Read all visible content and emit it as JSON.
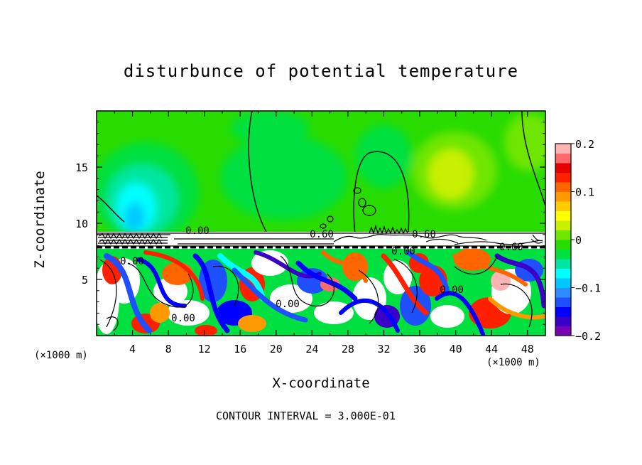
{
  "chart_data": {
    "type": "heatmap",
    "title": "disturbunce of potential temperature",
    "xlabel": "X-coordinate",
    "ylabel": "Z-coordinate",
    "x_unit_left": "(×1000 m)",
    "x_unit_right": "(×1000 m)",
    "x_ticks": [
      "4",
      "8",
      "12",
      "16",
      "20",
      "24",
      "28",
      "32",
      "36",
      "40",
      "44",
      "48"
    ],
    "y_ticks": [
      "5",
      "10",
      "15"
    ],
    "xlim": [
      0,
      50
    ],
    "ylim": [
      0,
      20
    ],
    "colorbar": {
      "ticks": [
        "0.2",
        "0.1",
        "0",
        "−0.1",
        "−0.2"
      ],
      "range": [
        -0.2,
        0.2
      ],
      "colors": [
        "#7a00b5",
        "#3a00c8",
        "#0000ff",
        "#1e50ff",
        "#2e8cff",
        "#00c8ff",
        "#00ffff",
        "#00e6a0",
        "#00e040",
        "#28dc00",
        "#6ee600",
        "#c8f000",
        "#ffff00",
        "#ffcc00",
        "#ff9900",
        "#ff6600",
        "#ff2000",
        "#e60000",
        "#ff6a6a",
        "#ffb4b4"
      ]
    },
    "contour_labels": [
      "0.00",
      "0.60",
      "0.60",
      "0.00",
      "0.60",
      "0.00",
      "0.00",
      "0.00",
      "0.00"
    ],
    "footer": "CONTOUR INTERVAL = 3.000E-01"
  }
}
